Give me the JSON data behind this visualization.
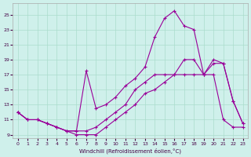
{
  "xlabel": "Windchill (Refroidissement éolien,°C)",
  "bg_color": "#cff0eb",
  "grid_color": "#aaddcc",
  "line_color": "#990099",
  "xlim": [
    -0.5,
    23.5
  ],
  "ylim": [
    8.5,
    26.5
  ],
  "yticks": [
    9,
    11,
    13,
    15,
    17,
    19,
    21,
    23,
    25
  ],
  "xticks": [
    0,
    1,
    2,
    3,
    4,
    5,
    6,
    7,
    8,
    9,
    10,
    11,
    12,
    13,
    14,
    15,
    16,
    17,
    18,
    19,
    20,
    21,
    22,
    23
  ],
  "series1_x": [
    0,
    1,
    2,
    3,
    4,
    5,
    6,
    7,
    8,
    9,
    10,
    11,
    12,
    13,
    14,
    15,
    16,
    17,
    18,
    19,
    20,
    21,
    22,
    23
  ],
  "series1_y": [
    12,
    11,
    11,
    10.5,
    10,
    9.5,
    9.0,
    9.0,
    9.0,
    10,
    11,
    12,
    13,
    14.5,
    15,
    16,
    17,
    17,
    17,
    17,
    17,
    11,
    10,
    10
  ],
  "series2_x": [
    0,
    1,
    2,
    3,
    4,
    5,
    6,
    7,
    8,
    9,
    10,
    11,
    12,
    13,
    14,
    15,
    16,
    17,
    18,
    19,
    20,
    21,
    22,
    23
  ],
  "series2_y": [
    12,
    11,
    11,
    10.5,
    10,
    9.5,
    9.5,
    17.5,
    12.5,
    13,
    14,
    15.5,
    16.5,
    18,
    22,
    24.5,
    25.5,
    23.5,
    23,
    17,
    19,
    18.5,
    13.5,
    10.5
  ],
  "series3_x": [
    0,
    1,
    2,
    3,
    4,
    5,
    6,
    7,
    8,
    9,
    10,
    11,
    12,
    13,
    14,
    15,
    16,
    17,
    18,
    19,
    20,
    21,
    22,
    23
  ],
  "series3_y": [
    12,
    11,
    11,
    10.5,
    10,
    9.5,
    9.5,
    9.5,
    10,
    11,
    12,
    13,
    15,
    16,
    17,
    17,
    17,
    19,
    19,
    17,
    18.5,
    18.5,
    13.5,
    10.5
  ]
}
